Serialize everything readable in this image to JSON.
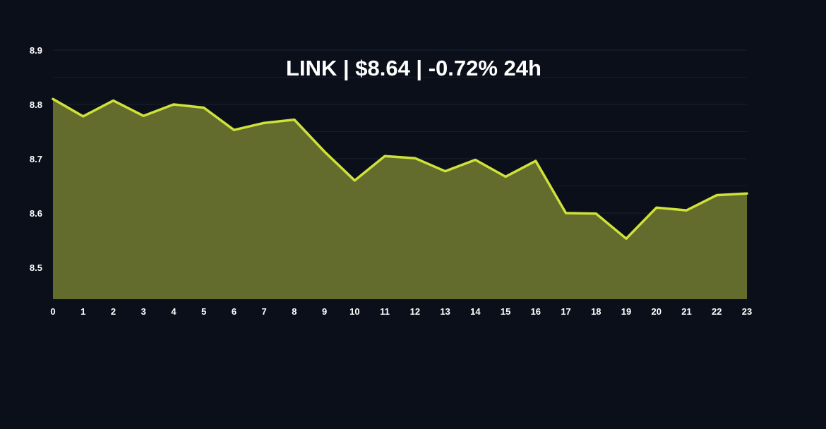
{
  "title": "LINK | $8.64 | -0.72% 24h",
  "chart_data": {
    "type": "area",
    "title": "LINK | $8.64 | -0.72% 24h",
    "xlabel": "",
    "ylabel": "",
    "x": [
      0,
      1,
      2,
      3,
      4,
      5,
      6,
      7,
      8,
      9,
      10,
      11,
      12,
      13,
      14,
      15,
      16,
      17,
      18,
      19,
      20,
      21,
      22,
      23
    ],
    "x_ticks": [
      "0",
      "1",
      "2",
      "3",
      "4",
      "5",
      "6",
      "7",
      "8",
      "9",
      "10",
      "11",
      "12",
      "13",
      "14",
      "15",
      "16",
      "17",
      "18",
      "19",
      "20",
      "21",
      "22",
      "23"
    ],
    "y_ticks": [
      "8.5",
      "8.6",
      "8.7",
      "8.8",
      "8.9"
    ],
    "ylim": [
      8.44,
      8.9
    ],
    "xlim": [
      0,
      23
    ],
    "grid": true,
    "series": [
      {
        "values": [
          8.81,
          8.778,
          8.807,
          8.779,
          8.8,
          8.794,
          8.753,
          8.766,
          8.772,
          8.713,
          8.66,
          8.705,
          8.701,
          8.677,
          8.698,
          8.667,
          8.696,
          8.6,
          8.599,
          8.553,
          8.61,
          8.605,
          8.633,
          8.636
        ]
      }
    ],
    "colors": {
      "background": "#0b0f1a",
      "line": "#cfe23a",
      "fill": "#636c2c",
      "grid": "#1b2130",
      "text": "#ffffff"
    }
  }
}
